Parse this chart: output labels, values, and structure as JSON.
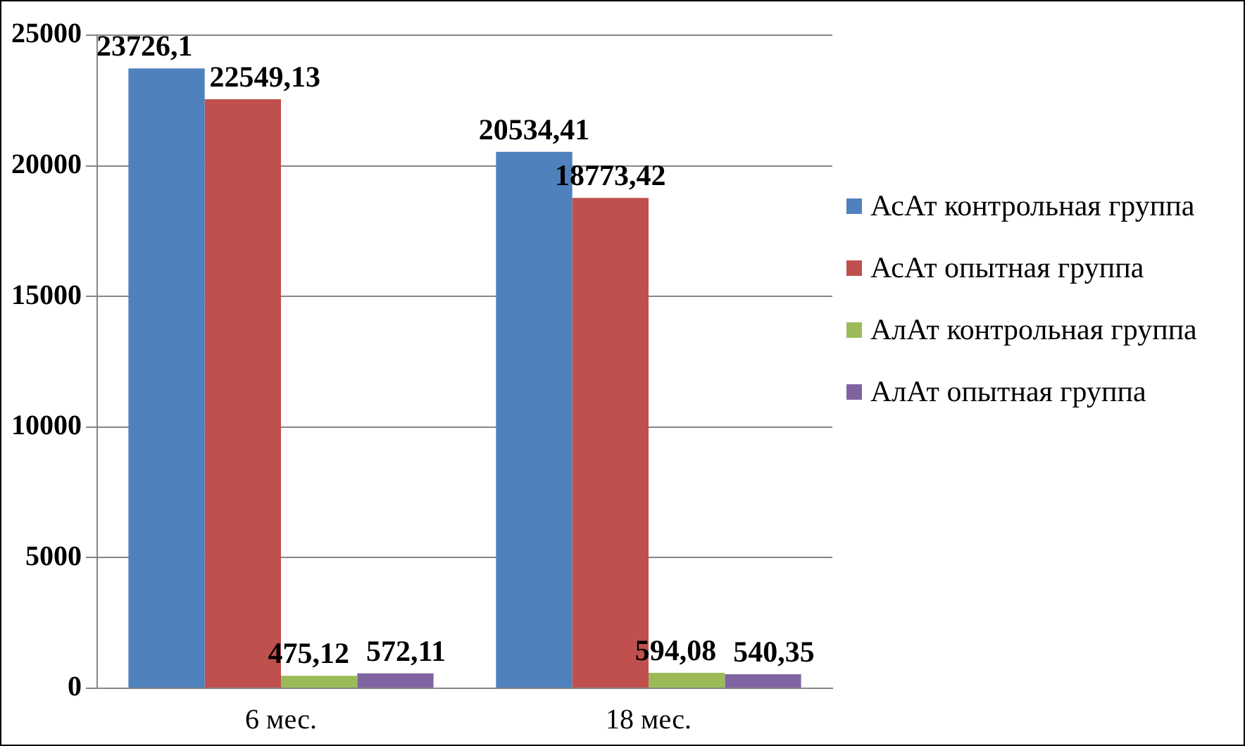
{
  "chart_data": {
    "type": "bar",
    "categories": [
      "6 мес.",
      "18 мес."
    ],
    "series": [
      {
        "name": "АсАт контрольная группа",
        "color": "#4f81bd",
        "values": [
          23726.1,
          20534.41
        ],
        "value_labels": [
          "23726,1",
          "20534,41"
        ]
      },
      {
        "name": "АсАт опытная группа",
        "color": "#c0504d",
        "values": [
          22549.13,
          18773.42
        ],
        "value_labels": [
          "22549,13",
          "18773,42"
        ]
      },
      {
        "name": "АлАт контрольная группа",
        "color": "#9bbb59",
        "values": [
          475.12,
          594.08
        ],
        "value_labels": [
          "475,12",
          "594,08"
        ]
      },
      {
        "name": "АлАт опытная группа",
        "color": "#8064a2",
        "values": [
          572.11,
          540.35
        ],
        "value_labels": [
          "572,11",
          "540,35"
        ]
      }
    ],
    "ylim": [
      0,
      25000
    ],
    "yticks": [
      0,
      5000,
      10000,
      15000,
      20000,
      25000
    ],
    "grid": "y",
    "legend": "right"
  }
}
